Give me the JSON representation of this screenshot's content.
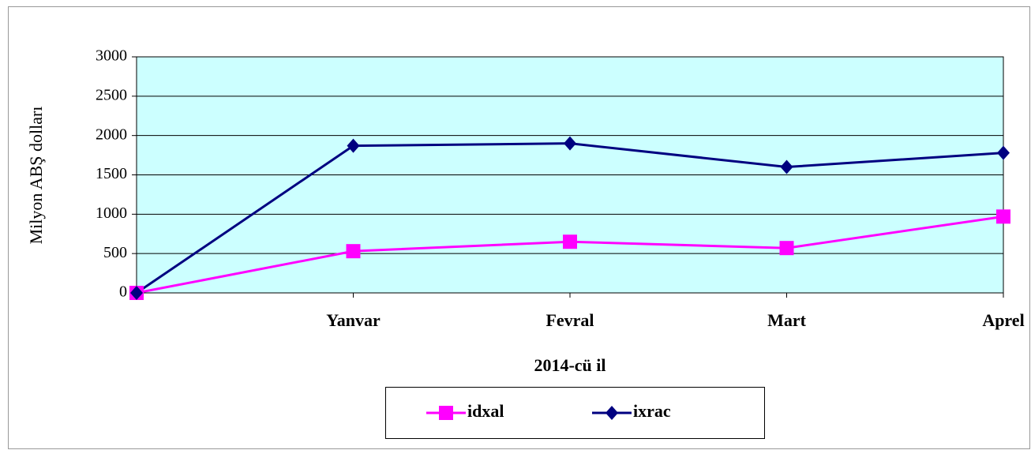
{
  "chart_data": {
    "type": "line",
    "xlabel": "2014-cü il",
    "ylabel": "Milyon ABŞ dolları",
    "categories": [
      null,
      "Yanvar",
      "Fevral",
      "Mart",
      "Aprel"
    ],
    "series": [
      {
        "name": "idxal",
        "color": "#ff00ff",
        "marker": "square",
        "values": [
          0,
          530,
          650,
          570,
          970
        ]
      },
      {
        "name": "ixrac",
        "color": "#000080",
        "marker": "diamond",
        "values": [
          0,
          1870,
          1900,
          1600,
          1780
        ]
      }
    ],
    "ylim": [
      0,
      3000
    ],
    "yticks": [
      0,
      500,
      1000,
      1500,
      2000,
      2500,
      3000
    ],
    "grid": true,
    "plot_background": "#ccffff",
    "legend": "bottom"
  }
}
